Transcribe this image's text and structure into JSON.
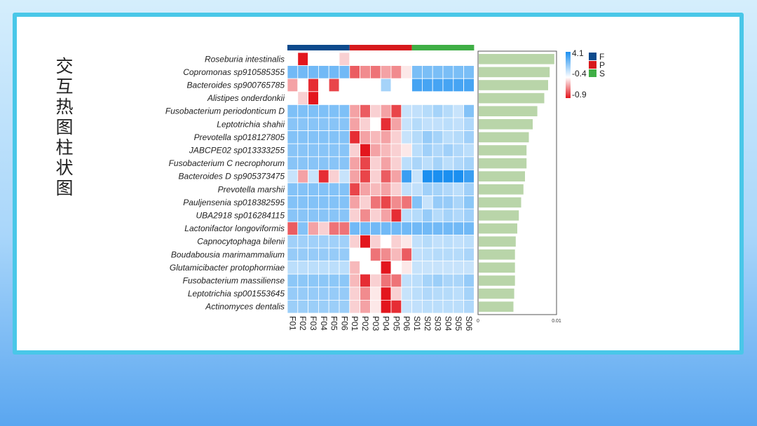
{
  "slide": {
    "title": "交互热图柱状图"
  },
  "chart_data": {
    "type": "heatmap",
    "rows": [
      "Roseburia intestinalis",
      "Copromonas sp910585355",
      "Bacteroides sp900765785",
      "Alistipes onderdonkii",
      "Fusobacterium periodonticum D",
      "Leptotrichia shahii",
      "Prevotella sp018127805",
      "JABCPE02 sp013333255",
      "Fusobacterium C necrophorum",
      "Bacteroides D sp905373475",
      "Prevotella marshii",
      "Pauljensenia sp018382595",
      "UBA2918 sp016284115",
      "Lactonifactor longoviformis",
      "Capnocytophaga bilenii",
      "Boudabousia marimammalium",
      "Glutamicibacter protophormiae",
      "Fusobacterium massiliense",
      "Leptotrichia sp001553645",
      "Actinomyces dentalis"
    ],
    "columns": [
      "F01",
      "F02",
      "F03",
      "F04",
      "F05",
      "F06",
      "P01",
      "P02",
      "P03",
      "P04",
      "P05",
      "P06",
      "S01",
      "S02",
      "S03",
      "S04",
      "S05",
      "S06"
    ],
    "groups": [
      {
        "name": "F",
        "color": "#0d4a8c",
        "count": 6
      },
      {
        "name": "P",
        "color": "#d7191c",
        "count": 6
      },
      {
        "name": "S",
        "color": "#3fae45",
        "count": 6
      }
    ],
    "color_scale": {
      "ticks": [
        4.1,
        -0.4,
        -0.9
      ],
      "high_color": "#1b8ff0",
      "mid_color": "#ffffff",
      "low_color": "#e3161d",
      "min": -0.9,
      "mid": -0.4,
      "max": 4.1
    },
    "values": [
      [
        -0.4,
        -0.9,
        -0.4,
        -0.4,
        -0.4,
        -0.5,
        -0.4,
        -0.4,
        -0.4,
        -0.4,
        -0.4,
        -0.4,
        -0.4,
        -0.4,
        -0.4,
        -0.4,
        -0.4,
        -0.4
      ],
      [
        2.0,
        2.0,
        2.0,
        2.0,
        2.0,
        2.0,
        -0.75,
        -0.65,
        -0.7,
        -0.6,
        -0.65,
        -0.45,
        1.8,
        1.8,
        1.8,
        1.8,
        1.8,
        1.8
      ],
      [
        -0.6,
        -0.4,
        -0.85,
        -0.4,
        -0.8,
        -0.4,
        -0.4,
        -0.4,
        -0.4,
        0.9,
        -0.4,
        -0.4,
        3.0,
        3.0,
        3.0,
        3.0,
        3.0,
        3.0
      ],
      [
        -0.4,
        -0.5,
        -0.9,
        -0.4,
        -0.4,
        -0.4,
        -0.4,
        -0.4,
        -0.4,
        -0.4,
        -0.4,
        -0.4,
        -0.4,
        -0.4,
        -0.4,
        -0.4,
        -0.4,
        -0.4
      ],
      [
        1.7,
        1.7,
        1.7,
        1.7,
        1.7,
        1.7,
        -0.6,
        -0.75,
        -0.5,
        -0.6,
        -0.8,
        0.3,
        0.4,
        0.6,
        0.9,
        0.6,
        0.3,
        1.6
      ],
      [
        1.5,
        1.5,
        1.5,
        1.5,
        1.5,
        1.5,
        -0.6,
        -0.5,
        -0.4,
        -0.85,
        -0.6,
        0.3,
        0.6,
        0.4,
        0.4,
        0.5,
        0.4,
        0.7
      ],
      [
        1.6,
        1.6,
        1.6,
        1.6,
        1.6,
        1.6,
        -0.85,
        -0.6,
        -0.55,
        -0.6,
        -0.5,
        0.3,
        0.6,
        1.2,
        0.9,
        0.5,
        0.6,
        1.0
      ],
      [
        1.5,
        1.5,
        1.5,
        1.5,
        1.5,
        1.5,
        -0.5,
        -0.9,
        -0.6,
        -0.55,
        -0.5,
        -0.45,
        0.5,
        1.0,
        0.7,
        1.0,
        0.7,
        0.5
      ],
      [
        1.5,
        1.5,
        1.5,
        1.5,
        1.5,
        1.5,
        -0.6,
        -0.8,
        -0.5,
        -0.6,
        -0.5,
        0.5,
        0.8,
        0.5,
        0.9,
        0.5,
        0.7,
        0.9
      ],
      [
        0.3,
        -0.6,
        0.3,
        -0.85,
        -0.5,
        0.3,
        -0.6,
        -0.8,
        -0.5,
        -0.75,
        -0.6,
        3.3,
        0.3,
        4.1,
        4.1,
        4.1,
        4.1,
        3.3
      ],
      [
        1.6,
        1.6,
        1.6,
        1.6,
        1.6,
        1.6,
        -0.8,
        -0.6,
        -0.55,
        -0.6,
        -0.5,
        0.4,
        0.4,
        1.0,
        0.9,
        0.7,
        0.5,
        1.0
      ],
      [
        1.6,
        1.6,
        1.6,
        1.6,
        1.6,
        1.6,
        -0.6,
        -0.5,
        -0.7,
        -0.8,
        -0.65,
        -0.7,
        1.6,
        0.3,
        1.2,
        1.2,
        0.8,
        1.4
      ],
      [
        1.5,
        1.5,
        1.5,
        1.5,
        1.5,
        1.5,
        -0.5,
        -0.65,
        -0.5,
        -0.6,
        -0.85,
        0.5,
        0.6,
        1.2,
        0.6,
        0.9,
        0.7,
        1.0
      ],
      [
        -0.75,
        1.6,
        -0.6,
        -0.5,
        -0.7,
        -0.7,
        2.0,
        2.0,
        2.0,
        2.0,
        2.0,
        2.0,
        2.0,
        2.0,
        2.0,
        2.0,
        2.0,
        2.0
      ],
      [
        1.0,
        1.0,
        1.0,
        1.0,
        1.0,
        1.0,
        -0.5,
        -0.9,
        -0.5,
        -0.4,
        -0.5,
        -0.45,
        0.4,
        0.6,
        0.4,
        0.5,
        0.4,
        0.5
      ],
      [
        1.2,
        1.2,
        1.2,
        1.2,
        1.2,
        1.2,
        -0.4,
        -0.4,
        -0.7,
        -0.65,
        -0.55,
        -0.75,
        0.4,
        0.5,
        0.6,
        0.6,
        0.6,
        0.8
      ],
      [
        0.5,
        0.5,
        0.5,
        0.5,
        0.5,
        0.5,
        -0.55,
        -0.4,
        -0.4,
        -0.9,
        -0.4,
        -0.45,
        0.3,
        0.3,
        0.3,
        0.3,
        0.3,
        0.3
      ],
      [
        1.4,
        1.4,
        1.4,
        1.4,
        1.4,
        1.4,
        -0.55,
        -0.85,
        -0.5,
        -0.7,
        -0.7,
        0.4,
        0.5,
        0.9,
        1.1,
        0.8,
        0.8,
        1.2
      ],
      [
        1.2,
        1.2,
        1.2,
        1.2,
        1.2,
        1.2,
        -0.5,
        -0.65,
        -0.45,
        -0.9,
        -0.5,
        0.3,
        0.5,
        0.7,
        0.6,
        0.6,
        0.5,
        0.9
      ],
      [
        1.1,
        1.1,
        1.1,
        1.1,
        1.1,
        1.1,
        -0.5,
        -0.6,
        -0.45,
        -0.9,
        -0.85,
        0.3,
        0.4,
        0.5,
        0.5,
        0.5,
        0.5,
        0.7
      ]
    ],
    "bars": {
      "values": [
        0.0098,
        0.0092,
        0.009,
        0.0085,
        0.0076,
        0.007,
        0.0065,
        0.0062,
        0.0062,
        0.006,
        0.0058,
        0.0055,
        0.0052,
        0.005,
        0.0048,
        0.0047,
        0.0047,
        0.0047,
        0.0046,
        0.0045
      ],
      "color": "#b9d5a9",
      "xlim": [
        0,
        0.01
      ],
      "ticks": [
        "0",
        "0.01"
      ]
    }
  }
}
